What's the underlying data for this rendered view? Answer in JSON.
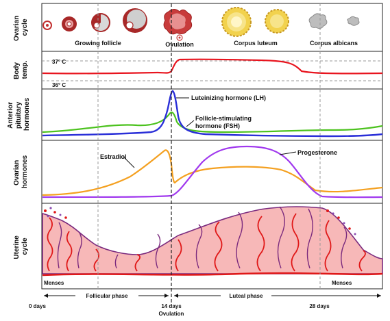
{
  "panels": {
    "ovarian_cycle": {
      "side_label_lines": [
        "Ovarian",
        "cycle"
      ],
      "stages": [
        "Growing follicle",
        "Ovulation",
        "Corpus luteum",
        "Corpus albicans"
      ]
    },
    "body_temp": {
      "side_label_lines": [
        "Body",
        "temp."
      ],
      "high_label": "37° C",
      "low_label": "36° C"
    },
    "pituitary": {
      "side_label_lines": [
        "Anterior",
        "pituitary",
        "hormones"
      ],
      "lh_label": "Luteinizing hormone (LH)",
      "fsh_label_lines": [
        "Follicle-stimulating",
        "hormone (FSH)"
      ]
    },
    "ovarian_hormones": {
      "side_label_lines": [
        "Ovarian",
        "hormones"
      ],
      "estradiol_label": "Estradiol",
      "progesterone_label": "Progesterone"
    },
    "uterine": {
      "side_label_lines": [
        "Uterine",
        "cycle"
      ],
      "menses_left": "Menses",
      "menses_right": "Menses"
    }
  },
  "phases": {
    "follicular": "Follicular phase",
    "luteal": "Luteal phase"
  },
  "x_axis": {
    "day0": "0 days",
    "day14": "14 days",
    "day14_sub": "Ovulation",
    "day28": "28 days"
  },
  "colors": {
    "temp": "#e8141e",
    "lh": "#2a2fd8",
    "fsh": "#4cc21e",
    "estradiol": "#f4a020",
    "progesterone": "#a038ee",
    "uterine_fill": "#f7b8b8",
    "uterine_outline": "#7a2a7e",
    "vessels": "#e01818"
  }
}
